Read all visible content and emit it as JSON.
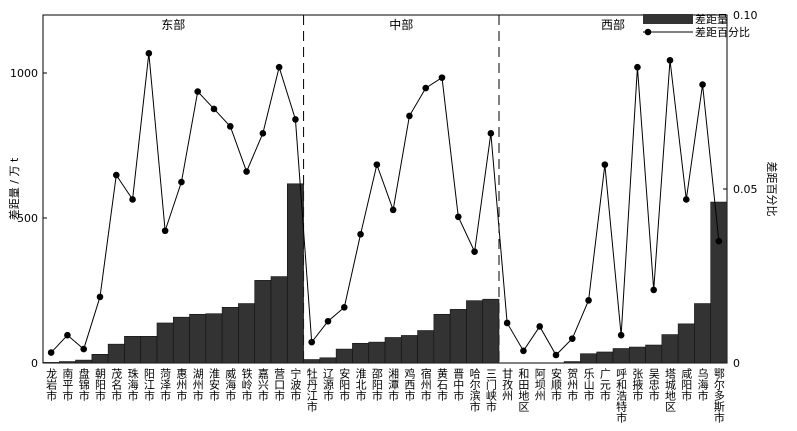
{
  "chart_data": {
    "type": "combo",
    "regions": [
      "东部",
      "中部",
      "西部"
    ],
    "categories": [
      "龙岩市",
      "南平市",
      "盘锦市",
      "朝阳市",
      "茂名市",
      "珠海市",
      "阳江市",
      "菏泽市",
      "惠州市",
      "湖州市",
      "淮安市",
      "威海市",
      "铁岭市",
      "嘉兴市",
      "营口市",
      "宁波市",
      "牡丹江市",
      "辽源市",
      "安阳市",
      "淮北市",
      "邵阳市",
      "湘潭市",
      "鸡西市",
      "宿州市",
      "黄石市",
      "晋中市",
      "哈尔滨市",
      "三门峡市",
      "甘孜州",
      "和田地区",
      "阿坝州",
      "安顺市",
      "贺州市",
      "乐山市",
      "广元市",
      "呼和浩特市",
      "张掖市",
      "吴忠市",
      "塔城地区",
      "咸阳市",
      "乌海市",
      "鄂尔多斯市"
    ],
    "series": [
      {
        "name": "差距量",
        "type": "bar",
        "color": "#333333",
        "values": [
          2,
          5,
          10,
          30,
          65,
          92,
          92,
          138,
          158,
          168,
          170,
          192,
          205,
          285,
          298,
          618,
          12,
          18,
          48,
          68,
          72,
          88,
          95,
          112,
          168,
          185,
          215,
          220,
          0,
          0,
          0,
          0,
          5,
          32,
          38,
          50,
          55,
          62,
          98,
          135,
          205,
          555
        ]
      },
      {
        "name": "差距百分比",
        "type": "line",
        "axis": "y2",
        "color": "#000000",
        "values": [
          0.003,
          0.008,
          0.004,
          0.019,
          0.054,
          0.047,
          0.089,
          0.038,
          0.052,
          0.078,
          0.073,
          0.068,
          0.055,
          0.066,
          0.085,
          0.07,
          0.006,
          0.012,
          0.016,
          0.037,
          0.057,
          0.044,
          0.071,
          0.079,
          0.082,
          0.042,
          0.032,
          0.066,
          0.0115,
          0.0035,
          0.0105,
          0.0023,
          0.007,
          0.018,
          0.057,
          0.008,
          0.085,
          0.021,
          0.087,
          0.047,
          0.08,
          0.035
        ]
      }
    ],
    "ylabel": "差距量 / 万 t",
    "y2label": "差距百分比",
    "ylim": [
      0,
      1200
    ],
    "yticks": [
      0,
      500,
      1000
    ],
    "y2lim": [
      0,
      0.1
    ],
    "y2ticks": [
      0,
      0.05,
      {
        "value": 0.1,
        "label": "0.10"
      }
    ],
    "legend": "upper right"
  }
}
